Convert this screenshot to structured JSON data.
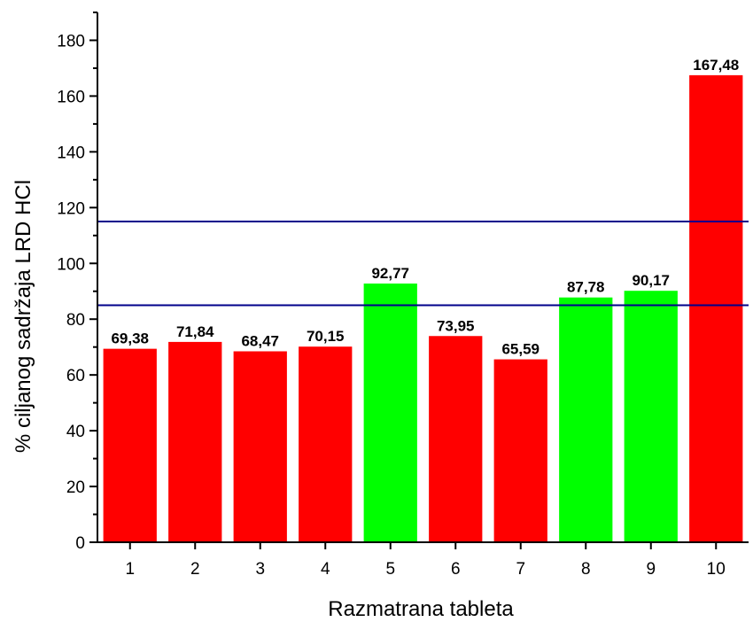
{
  "chart_data": {
    "type": "bar",
    "xlabel": "Razmatrana tableta",
    "ylabel": "% ciljanog sadržaja LRD HCl",
    "categories": [
      "1",
      "2",
      "3",
      "4",
      "5",
      "6",
      "7",
      "8",
      "9",
      "10"
    ],
    "values": [
      69.38,
      71.84,
      68.47,
      70.15,
      92.77,
      73.95,
      65.59,
      87.78,
      90.17,
      167.48
    ],
    "value_labels": [
      "69,38",
      "71,84",
      "68,47",
      "70,15",
      "92,77",
      "73,95",
      "65,59",
      "87,78",
      "90,17",
      "167,48"
    ],
    "bar_colors": [
      "#ff0000",
      "#ff0000",
      "#ff0000",
      "#ff0000",
      "#00ff00",
      "#ff0000",
      "#ff0000",
      "#00ff00",
      "#00ff00",
      "#ff0000"
    ],
    "ylim": [
      0,
      190
    ],
    "yticks": [
      0,
      20,
      40,
      60,
      80,
      100,
      120,
      140,
      160,
      180
    ],
    "reference_lines": [
      85,
      115
    ],
    "reference_line_color": "#00008b",
    "grid": false
  }
}
